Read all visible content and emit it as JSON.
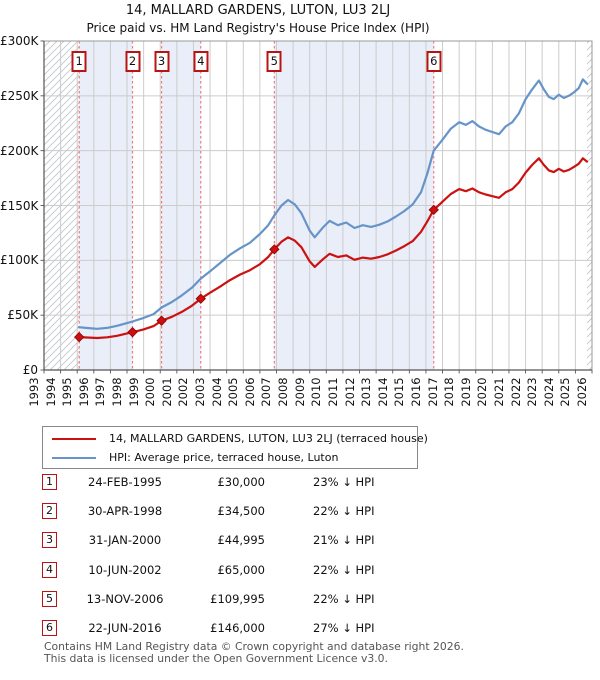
{
  "title": "14, MALLARD GARDENS, LUTON, LU3 2LJ",
  "subtitle": "Price paid vs. HM Land Registry's House Price Index (HPI)",
  "colors": {
    "price_line": "#cc1111",
    "hpi_line": "#6694c9",
    "marker_dot": "#cc0f0f",
    "marker_dot_edge": "#8f0000",
    "dashed_line": "#ee7c7c",
    "marker_box_border": "#b91414",
    "shade": "#e9eef8",
    "grid": "#cccccc",
    "hatch": "#c3c6cd",
    "spine_dark": "#555555",
    "spine_light": "#999999",
    "footer_text": "#555555"
  },
  "chart_data": {
    "type": "line",
    "title": "14, MALLARD GARDENS, LUTON, LU3 2LJ",
    "subtitle": "Price paid vs. HM Land Registry's House Price Index (HPI)",
    "xlabel": "",
    "ylabel": "",
    "xlim": [
      1993,
      2026
    ],
    "ylim": [
      0,
      300000
    ],
    "grid": true,
    "x_ticks": [
      1993,
      1994,
      1995,
      1996,
      1997,
      1998,
      1999,
      2000,
      2001,
      2002,
      2003,
      2004,
      2005,
      2006,
      2007,
      2008,
      2009,
      2010,
      2011,
      2012,
      2013,
      2014,
      2015,
      2016,
      2017,
      2018,
      2019,
      2020,
      2021,
      2022,
      2023,
      2024,
      2025,
      2026
    ],
    "y_ticks": [
      {
        "value": 0,
        "label": "£0"
      },
      {
        "value": 50000,
        "label": "£50K"
      },
      {
        "value": 100000,
        "label": "£100K"
      },
      {
        "value": 150000,
        "label": "£150K"
      },
      {
        "value": 200000,
        "label": "£200K"
      },
      {
        "value": 250000,
        "label": "£250K"
      },
      {
        "value": 300000,
        "label": "£300K"
      }
    ],
    "series": [
      {
        "name": "HPI: Average price, terraced house, Luton",
        "color": "#6694c9",
        "points": [
          [
            1995.1,
            39000
          ],
          [
            1995.6,
            38300
          ],
          [
            1996.2,
            37600
          ],
          [
            1996.8,
            38400
          ],
          [
            1997.4,
            40300
          ],
          [
            1998.0,
            42800
          ],
          [
            1998.33,
            44200
          ],
          [
            1999.0,
            47500
          ],
          [
            1999.6,
            51000
          ],
          [
            2000.08,
            57000
          ],
          [
            2000.7,
            62000
          ],
          [
            2001.3,
            68000
          ],
          [
            2001.9,
            75000
          ],
          [
            2002.44,
            83300
          ],
          [
            2003.0,
            90000
          ],
          [
            2003.6,
            97500
          ],
          [
            2004.2,
            105000
          ],
          [
            2004.8,
            111000
          ],
          [
            2005.4,
            116000
          ],
          [
            2006.0,
            124000
          ],
          [
            2006.5,
            132000
          ],
          [
            2006.87,
            141000
          ],
          [
            2007.3,
            150000
          ],
          [
            2007.7,
            155000
          ],
          [
            2008.1,
            151000
          ],
          [
            2008.5,
            143000
          ],
          [
            2009.0,
            127000
          ],
          [
            2009.3,
            121000
          ],
          [
            2009.8,
            130000
          ],
          [
            2010.2,
            136000
          ],
          [
            2010.7,
            132000
          ],
          [
            2011.2,
            134500
          ],
          [
            2011.7,
            129500
          ],
          [
            2012.2,
            132000
          ],
          [
            2012.7,
            130500
          ],
          [
            2013.2,
            132500
          ],
          [
            2013.7,
            135500
          ],
          [
            2014.2,
            140000
          ],
          [
            2014.7,
            145000
          ],
          [
            2015.2,
            151000
          ],
          [
            2015.7,
            162000
          ],
          [
            2016.1,
            180000
          ],
          [
            2016.47,
            200000
          ],
          [
            2017.0,
            210000
          ],
          [
            2017.5,
            220000
          ],
          [
            2018.0,
            226000
          ],
          [
            2018.4,
            223500
          ],
          [
            2018.8,
            227000
          ],
          [
            2019.2,
            222000
          ],
          [
            2019.6,
            219000
          ],
          [
            2020.0,
            217000
          ],
          [
            2020.4,
            215000
          ],
          [
            2020.8,
            222000
          ],
          [
            2021.2,
            226000
          ],
          [
            2021.6,
            234000
          ],
          [
            2022.0,
            247000
          ],
          [
            2022.4,
            256000
          ],
          [
            2022.8,
            264000
          ],
          [
            2023.1,
            256000
          ],
          [
            2023.4,
            249000
          ],
          [
            2023.7,
            247000
          ],
          [
            2024.0,
            251000
          ],
          [
            2024.3,
            248000
          ],
          [
            2024.6,
            250000
          ],
          [
            2024.9,
            253000
          ],
          [
            2025.2,
            257000
          ],
          [
            2025.45,
            265000
          ],
          [
            2025.7,
            261000
          ]
        ]
      },
      {
        "name": "14, MALLARD GARDENS, LUTON, LU3 2LJ (terraced house)",
        "color": "#cc1111",
        "points": [
          [
            1995.12,
            30000
          ],
          [
            1995.6,
            29600
          ],
          [
            1996.2,
            29200
          ],
          [
            1996.8,
            29800
          ],
          [
            1997.4,
            31200
          ],
          [
            1998.0,
            33400
          ],
          [
            1998.33,
            34500
          ],
          [
            1999.0,
            37000
          ],
          [
            1999.6,
            40000
          ],
          [
            2000.08,
            44995
          ],
          [
            2000.7,
            48500
          ],
          [
            2001.3,
            53000
          ],
          [
            2001.9,
            58500
          ],
          [
            2002.44,
            65000
          ],
          [
            2003.0,
            70500
          ],
          [
            2003.6,
            76000
          ],
          [
            2004.2,
            82000
          ],
          [
            2004.8,
            87000
          ],
          [
            2005.4,
            91000
          ],
          [
            2006.0,
            96500
          ],
          [
            2006.5,
            103000
          ],
          [
            2006.87,
            109995
          ],
          [
            2007.3,
            117000
          ],
          [
            2007.7,
            121000
          ],
          [
            2008.1,
            118000
          ],
          [
            2008.5,
            112000
          ],
          [
            2009.0,
            99000
          ],
          [
            2009.3,
            94000
          ],
          [
            2009.8,
            101000
          ],
          [
            2010.2,
            106000
          ],
          [
            2010.7,
            103000
          ],
          [
            2011.2,
            104500
          ],
          [
            2011.7,
            100500
          ],
          [
            2012.2,
            102500
          ],
          [
            2012.7,
            101500
          ],
          [
            2013.2,
            103000
          ],
          [
            2013.7,
            105500
          ],
          [
            2014.2,
            109000
          ],
          [
            2014.7,
            113000
          ],
          [
            2015.2,
            117500
          ],
          [
            2015.7,
            126000
          ],
          [
            2016.1,
            136000
          ],
          [
            2016.47,
            146000
          ],
          [
            2017.0,
            153500
          ],
          [
            2017.5,
            160500
          ],
          [
            2018.0,
            165000
          ],
          [
            2018.4,
            163000
          ],
          [
            2018.8,
            165500
          ],
          [
            2019.2,
            162000
          ],
          [
            2019.6,
            160000
          ],
          [
            2020.0,
            158500
          ],
          [
            2020.4,
            157000
          ],
          [
            2020.8,
            162000
          ],
          [
            2021.2,
            165000
          ],
          [
            2021.6,
            171000
          ],
          [
            2022.0,
            180000
          ],
          [
            2022.4,
            187000
          ],
          [
            2022.8,
            193000
          ],
          [
            2023.1,
            187000
          ],
          [
            2023.4,
            182000
          ],
          [
            2023.7,
            180500
          ],
          [
            2024.0,
            183500
          ],
          [
            2024.3,
            181000
          ],
          [
            2024.6,
            182500
          ],
          [
            2024.9,
            185000
          ],
          [
            2025.2,
            188000
          ],
          [
            2025.45,
            193000
          ],
          [
            2025.7,
            190000
          ]
        ]
      }
    ],
    "markers": [
      {
        "label": "1",
        "year": 1995.12,
        "price": 30000
      },
      {
        "label": "2",
        "year": 1998.33,
        "price": 34500
      },
      {
        "label": "3",
        "year": 2000.08,
        "price": 44995
      },
      {
        "label": "4",
        "year": 2002.44,
        "price": 65000
      },
      {
        "label": "5",
        "year": 2006.87,
        "price": 109995
      },
      {
        "label": "6",
        "year": 2016.47,
        "price": 146000
      }
    ],
    "shade_regions": [
      [
        1995.12,
        1998.33
      ],
      [
        2000.08,
        2002.44
      ],
      [
        2006.87,
        2016.47
      ]
    ],
    "hatch_regions": [
      [
        1993,
        1995.12
      ],
      [
        2025.7,
        2026
      ]
    ],
    "legend_position": "below"
  },
  "legend": {
    "entries": [
      {
        "label": "14, MALLARD GARDENS, LUTON, LU3 2LJ (terraced house)",
        "color": "#cc1111"
      },
      {
        "label": "HPI: Average price, terraced house, Luton",
        "color": "#6694c9"
      }
    ]
  },
  "table": {
    "rows": [
      {
        "num": "1",
        "date": "24-FEB-1995",
        "price": "£30,000",
        "delta": "23% ↓ HPI"
      },
      {
        "num": "2",
        "date": "30-APR-1998",
        "price": "£34,500",
        "delta": "22% ↓ HPI"
      },
      {
        "num": "3",
        "date": "31-JAN-2000",
        "price": "£44,995",
        "delta": "21% ↓ HPI"
      },
      {
        "num": "4",
        "date": "10-JUN-2002",
        "price": "£65,000",
        "delta": "22% ↓ HPI"
      },
      {
        "num": "5",
        "date": "13-NOV-2006",
        "price": "£109,995",
        "delta": "22% ↓ HPI"
      },
      {
        "num": "6",
        "date": "22-JUN-2016",
        "price": "£146,000",
        "delta": "27% ↓ HPI"
      }
    ]
  },
  "footer": {
    "line1": "Contains HM Land Registry data © Crown copyright and database right 2026.",
    "line2": "This data is licensed under the Open Government Licence v3.0."
  }
}
